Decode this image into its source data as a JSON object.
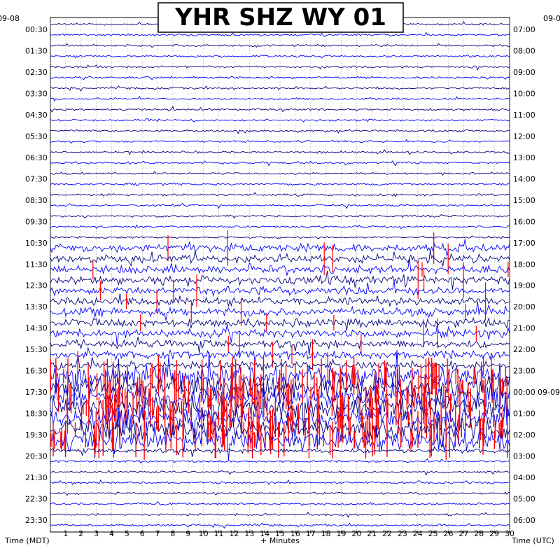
{
  "chart_data": {
    "type": "line",
    "title": "YHR SHZ WY 01",
    "left_date": "09-08",
    "right_date_top": "09-0",
    "right_date_mid": "09-09",
    "left_axis_label": "Time (MDT)",
    "bottom_axis_label": "+ Minutes",
    "right_axis_label": "Time (UTC)",
    "x_ticks": [
      "1",
      "2",
      "3",
      "4",
      "5",
      "6",
      "7",
      "8",
      "9",
      "10",
      "11",
      "12",
      "13",
      "14",
      "15",
      "16",
      "17",
      "18",
      "19",
      "20",
      "21",
      "22",
      "23",
      "24",
      "25",
      "26",
      "27",
      "28",
      "29",
      "30"
    ],
    "xlim": [
      0,
      30
    ],
    "left_times": [
      "00:30",
      "01:30",
      "02:30",
      "03:30",
      "04:30",
      "05:30",
      "06:30",
      "07:30",
      "08:30",
      "09:30",
      "10:30",
      "11:30",
      "12:30",
      "13:30",
      "14:30",
      "15:30",
      "16:30",
      "17:30",
      "18:30",
      "19:30",
      "20:30",
      "21:30",
      "22:30",
      "23:30"
    ],
    "right_times": [
      "07:00",
      "08:00",
      "09:00",
      "10:00",
      "11:00",
      "12:00",
      "13:00",
      "14:00",
      "15:00",
      "16:00",
      "17:00",
      "18:00",
      "19:00",
      "20:00",
      "21:00",
      "22:00",
      "23:00",
      "00:00",
      "01:00",
      "02:00",
      "03:00",
      "04:00",
      "05:00",
      "06:00"
    ],
    "trace_count": 48,
    "trace_colors": [
      "#000080",
      "#0000ff"
    ],
    "clip_color": "#ff0000",
    "activity": {
      "quiet_hours": "00:00-10:00 MDT",
      "moderate_hours": "10:30-16:00 MDT",
      "clipped_hours": "16:30-20:00 MDT",
      "quiet_again": "20:30-23:30 MDT"
    }
  }
}
